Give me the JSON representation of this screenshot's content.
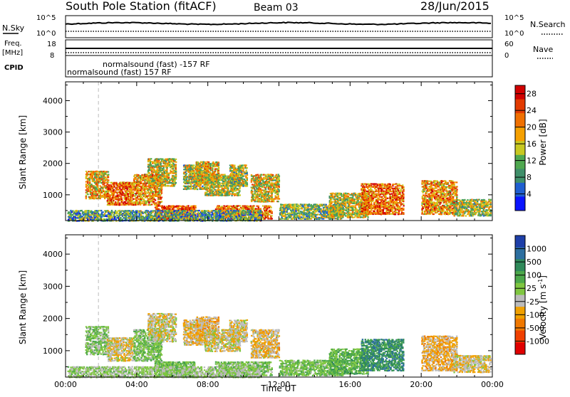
{
  "header": {
    "station": "South Pole Station (fitACF)",
    "beam": "Beam 03",
    "date": "28/Jun/2015"
  },
  "status": {
    "left_labels": [
      "N.Sky",
      "Freq.",
      "[MHz]",
      "CPID"
    ],
    "right_labels": [
      "N.Search",
      "Nave"
    ],
    "noise_ticks_left": [
      "10^5",
      "10^0"
    ],
    "noise_ticks_right": [
      "10^5",
      "10^0"
    ],
    "freq_ticks": [
      "18",
      "8"
    ],
    "nave_ticks": [
      "60",
      "0"
    ],
    "cpid_lines": [
      "normalsound (fast) -157 RF",
      "normalsound (fast) 157 RF"
    ]
  },
  "axes": {
    "xlabel": "Time UT",
    "ylabel": "Slant Range [km]",
    "xticks": [
      "00:00",
      "04:00",
      "08:00",
      "12:00",
      "16:00",
      "20:00",
      "00:00"
    ],
    "yticks": [
      "1000",
      "2000",
      "3000",
      "4000"
    ]
  },
  "chart_data": [
    {
      "type": "heatmap",
      "title": "",
      "xlabel": "",
      "ylabel": "Slant Range [km]",
      "xlim": [
        0,
        24
      ],
      "ylim": [
        180,
        4600
      ],
      "colorbar": {
        "label": "Power [dB]",
        "ticks": [
          "4",
          "8",
          "12",
          "16",
          "20",
          "24",
          "28"
        ],
        "range": [
          0,
          30
        ],
        "colors": [
          "#0a14ff",
          "#1f5fd0",
          "#3f8f6a",
          "#4fa850",
          "#c8c820",
          "#f5a000",
          "#f07000",
          "#e23a00",
          "#d10000"
        ]
      },
      "regions": [
        {
          "t0": 1.1,
          "t1": 2.4,
          "r0": 900,
          "r1": 1800,
          "level": 18
        },
        {
          "t0": 2.3,
          "t1": 3.8,
          "r0": 700,
          "r1": 1450,
          "level": 22
        },
        {
          "t0": 3.8,
          "t1": 5.4,
          "r0": 700,
          "r1": 1700,
          "level": 20
        },
        {
          "t0": 4.6,
          "t1": 6.2,
          "r0": 1300,
          "r1": 2200,
          "level": 16
        },
        {
          "t0": 5.0,
          "t1": 7.3,
          "r0": 250,
          "r1": 700,
          "level": 25
        },
        {
          "t0": 6.6,
          "t1": 8.0,
          "r0": 1200,
          "r1": 2000,
          "level": 14
        },
        {
          "t0": 7.3,
          "t1": 8.6,
          "r0": 1400,
          "r1": 2100,
          "level": 17
        },
        {
          "t0": 7.8,
          "t1": 9.8,
          "r0": 1000,
          "r1": 1700,
          "level": 15
        },
        {
          "t0": 8.4,
          "t1": 11.6,
          "r0": 250,
          "r1": 700,
          "level": 22
        },
        {
          "t0": 9.2,
          "t1": 10.2,
          "r0": 1300,
          "r1": 2000,
          "level": 14
        },
        {
          "t0": 10.4,
          "t1": 12.0,
          "r0": 800,
          "r1": 1700,
          "level": 17
        },
        {
          "t0": 12.0,
          "t1": 15.6,
          "r0": 250,
          "r1": 750,
          "level": 12
        },
        {
          "t0": 14.8,
          "t1": 17.0,
          "r0": 300,
          "r1": 1100,
          "level": 15
        },
        {
          "t0": 16.6,
          "t1": 19.0,
          "r0": 400,
          "r1": 1400,
          "level": 22
        },
        {
          "t0": 20.0,
          "t1": 22.0,
          "r0": 400,
          "r1": 1500,
          "level": 20
        },
        {
          "t0": 21.8,
          "t1": 23.9,
          "r0": 350,
          "r1": 900,
          "level": 14
        },
        {
          "t0": 0.1,
          "t1": 11.0,
          "r0": 190,
          "r1": 550,
          "level": 10
        }
      ]
    },
    {
      "type": "heatmap",
      "title": "",
      "xlabel": "Time UT",
      "ylabel": "Slant Range [km]",
      "xlim": [
        0,
        24
      ],
      "ylim": [
        180,
        4600
      ],
      "colorbar": {
        "label": "Velocity [m s^-1]",
        "ticks": [
          "1000",
          "500",
          "100",
          "25",
          "-25",
          "-100",
          "-500",
          "-1000"
        ],
        "range": [
          -1000,
          1000
        ],
        "colors": [
          "#1e3fa8",
          "#2d6fa0",
          "#2f8a5a",
          "#4ca84a",
          "#7fc640",
          "#bbbbbb",
          "#f0a000",
          "#f07800",
          "#f04000",
          "#e00000"
        ]
      },
      "regions": [
        {
          "t0": 1.1,
          "t1": 2.4,
          "r0": 900,
          "r1": 1800,
          "level": 120
        },
        {
          "t0": 2.3,
          "t1": 3.8,
          "r0": 700,
          "r1": 1450,
          "level": -150
        },
        {
          "t0": 3.8,
          "t1": 5.4,
          "r0": 700,
          "r1": 1700,
          "level": 150
        },
        {
          "t0": 4.6,
          "t1": 6.2,
          "r0": 1300,
          "r1": 2200,
          "level": -120
        },
        {
          "t0": 5.0,
          "t1": 7.3,
          "r0": 250,
          "r1": 700,
          "level": 200
        },
        {
          "t0": 6.6,
          "t1": 8.0,
          "r0": 1200,
          "r1": 2000,
          "level": -200
        },
        {
          "t0": 7.3,
          "t1": 8.6,
          "r0": 1400,
          "r1": 2100,
          "level": -250
        },
        {
          "t0": 7.8,
          "t1": 9.8,
          "r0": 1000,
          "r1": 1700,
          "level": -120
        },
        {
          "t0": 8.4,
          "t1": 11.6,
          "r0": 250,
          "r1": 700,
          "level": 150
        },
        {
          "t0": 9.2,
          "t1": 10.2,
          "r0": 1300,
          "r1": 2000,
          "level": -150
        },
        {
          "t0": 10.4,
          "t1": 12.0,
          "r0": 800,
          "r1": 1700,
          "level": -200
        },
        {
          "t0": 12.0,
          "t1": 15.6,
          "r0": 250,
          "r1": 750,
          "level": 150
        },
        {
          "t0": 14.8,
          "t1": 17.0,
          "r0": 300,
          "r1": 1100,
          "level": 250
        },
        {
          "t0": 16.6,
          "t1": 19.0,
          "r0": 400,
          "r1": 1400,
          "level": 500
        },
        {
          "t0": 20.0,
          "t1": 22.0,
          "r0": 400,
          "r1": 1500,
          "level": -250
        },
        {
          "t0": 21.8,
          "t1": 23.9,
          "r0": 350,
          "r1": 900,
          "level": -150
        },
        {
          "t0": 0.1,
          "t1": 11.0,
          "r0": 190,
          "r1": 550,
          "level": 20
        }
      ]
    }
  ]
}
